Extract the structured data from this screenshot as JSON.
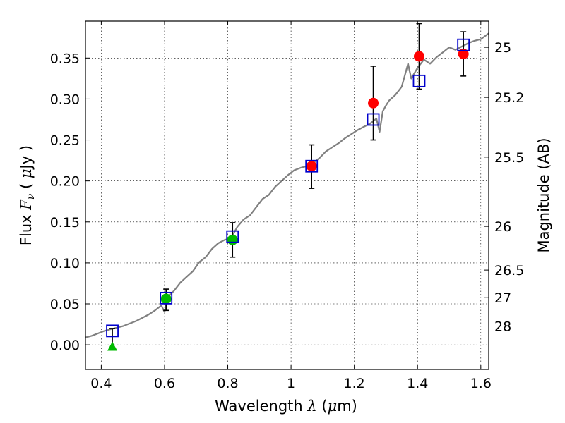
{
  "chart_data": {
    "type": "scatter",
    "xlabel": "Wavelength  λ (μm)",
    "ylabel": "Flux  F_ν  ( μJy )",
    "ylabel2": "Magnitude (AB)",
    "xlim": [
      0.35,
      1.625
    ],
    "ylim": [
      -0.03,
      0.395
    ],
    "grid": true,
    "xticks": [
      {
        "value": 0.4,
        "label": "0.4"
      },
      {
        "value": 0.6,
        "label": "0.6"
      },
      {
        "value": 0.8,
        "label": "0.8"
      },
      {
        "value": 1.0,
        "label": "1"
      },
      {
        "value": 1.2,
        "label": "1.2"
      },
      {
        "value": 1.4,
        "label": "1.4"
      },
      {
        "value": 1.6,
        "label": "1.6"
      }
    ],
    "yticks": [
      {
        "value": 0.0,
        "label": "0.00"
      },
      {
        "value": 0.05,
        "label": "0.05"
      },
      {
        "value": 0.1,
        "label": "0.10"
      },
      {
        "value": 0.15,
        "label": "0.15"
      },
      {
        "value": 0.2,
        "label": "0.20"
      },
      {
        "value": 0.25,
        "label": "0.25"
      },
      {
        "value": 0.3,
        "label": "0.30"
      },
      {
        "value": 0.35,
        "label": "0.35"
      }
    ],
    "mag_ticks": [
      {
        "value": 25.0,
        "label": "25"
      },
      {
        "value": 25.2,
        "label": "25.2"
      },
      {
        "value": 25.5,
        "label": "25.5"
      },
      {
        "value": 26.0,
        "label": "26"
      },
      {
        "value": 26.5,
        "label": "26.5"
      },
      {
        "value": 27.0,
        "label": "27"
      },
      {
        "value": 28.0,
        "label": "28"
      }
    ],
    "colors": {
      "model": "#808080",
      "observed_optical": "#00bb00",
      "observed_nir": "#ff0000",
      "model_points": "#0000cc",
      "errorbar": "#000000"
    },
    "series": [
      {
        "type": "line",
        "x": [
          0.35,
          0.37,
          0.39,
          0.41,
          0.43,
          0.45,
          0.47,
          0.49,
          0.51,
          0.53,
          0.55,
          0.57,
          0.59,
          0.6,
          0.61,
          0.63,
          0.65,
          0.67,
          0.69,
          0.71,
          0.73,
          0.75,
          0.77,
          0.79,
          0.81,
          0.83,
          0.85,
          0.87,
          0.89,
          0.91,
          0.93,
          0.95,
          0.97,
          0.99,
          1.01,
          1.03,
          1.05,
          1.07,
          1.09,
          1.11,
          1.13,
          1.15,
          1.17,
          1.19,
          1.21,
          1.23,
          1.25,
          1.27,
          1.28,
          1.29,
          1.3,
          1.31,
          1.33,
          1.35,
          1.37,
          1.38,
          1.4,
          1.42,
          1.44,
          1.46,
          1.48,
          1.5,
          1.52,
          1.54,
          1.56,
          1.58,
          1.6,
          1.625
        ],
        "y": [
          0.009,
          0.011,
          0.014,
          0.017,
          0.019,
          0.021,
          0.023,
          0.026,
          0.029,
          0.033,
          0.037,
          0.042,
          0.048,
          0.04,
          0.058,
          0.066,
          0.076,
          0.083,
          0.09,
          0.101,
          0.107,
          0.117,
          0.124,
          0.128,
          0.13,
          0.144,
          0.153,
          0.158,
          0.168,
          0.178,
          0.183,
          0.193,
          0.2,
          0.207,
          0.213,
          0.216,
          0.218,
          0.222,
          0.228,
          0.236,
          0.241,
          0.246,
          0.252,
          0.257,
          0.262,
          0.266,
          0.27,
          0.276,
          0.26,
          0.285,
          0.292,
          0.298,
          0.305,
          0.315,
          0.343,
          0.325,
          0.338,
          0.348,
          0.343,
          0.351,
          0.357,
          0.363,
          0.36,
          0.364,
          0.368,
          0.371,
          0.373,
          0.38
        ]
      },
      {
        "type": "errorbar",
        "marker": "circle",
        "color_key": "observed_optical",
        "x": [
          0.605,
          0.815
        ],
        "y": [
          0.056,
          0.128
        ],
        "yerr_low": [
          0.014,
          0.021
        ],
        "yerr_high": [
          0.012,
          0.021
        ]
      },
      {
        "type": "errorbar",
        "marker": "circle",
        "color_key": "observed_nir",
        "x": [
          1.065,
          1.26,
          1.405,
          1.545
        ],
        "y": [
          0.218,
          0.295,
          0.352,
          0.355
        ],
        "yerr_low": [
          0.027,
          0.045,
          0.04,
          0.027
        ],
        "yerr_high": [
          0.026,
          0.045,
          0.04,
          0.027
        ]
      },
      {
        "type": "upper_limit",
        "marker": "triangle",
        "color_key": "observed_optical",
        "x": [
          0.435
        ],
        "y": [
          -0.002
        ],
        "yerr_high": [
          0.022
        ]
      },
      {
        "type": "scatter",
        "marker": "square",
        "color_key": "model_points",
        "x": [
          0.435,
          0.605,
          0.815,
          1.065,
          1.26,
          1.405,
          1.545
        ],
        "y": [
          0.017,
          0.057,
          0.132,
          0.218,
          0.275,
          0.322,
          0.366
        ]
      }
    ]
  }
}
